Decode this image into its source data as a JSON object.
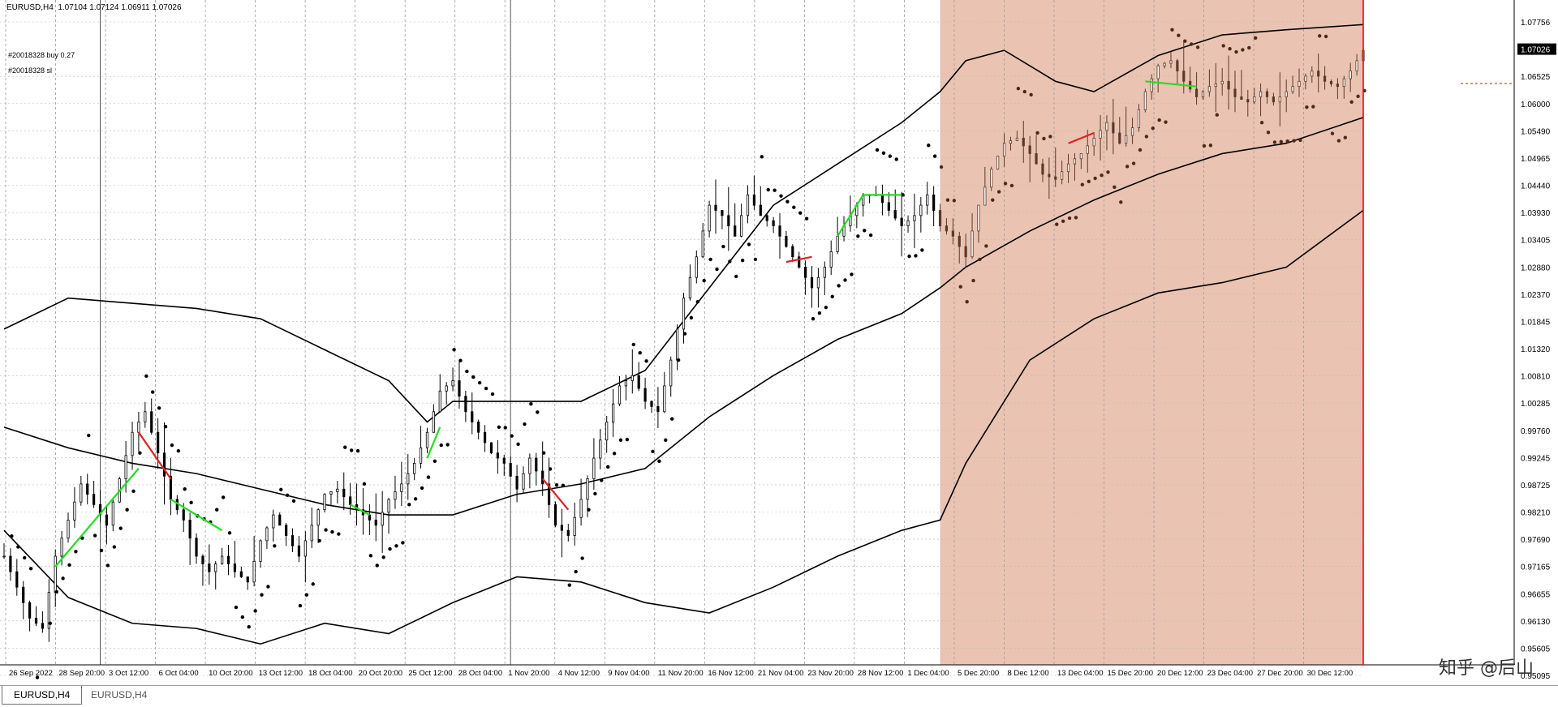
{
  "header": {
    "text": "EURUSD,H4  1.07104 1.07124 1.06911 1.07026"
  },
  "trade_labels": [
    "#20018328 buy 0.27",
    "#20018328 sl"
  ],
  "tabs": [
    {
      "label": "EURUSD,H4",
      "active": true
    },
    {
      "label": "EURUSD,H4",
      "active": false
    }
  ],
  "watermark": "知乎 @后山",
  "colors": {
    "background": "#ffffff",
    "shade": "#e8b9a5",
    "candle": "#000000",
    "band": "#000000",
    "sar": "#000000",
    "zigzag_up": "#22dd22",
    "zigzag_down": "#dd2222",
    "current_line": "#ff0000",
    "price_box": "#000000"
  },
  "chart_data": {
    "type": "line",
    "symbol": "EURUSD",
    "timeframe": "H4",
    "ohlc_last": {
      "open": 1.07104,
      "high": 1.07124,
      "low": 1.06911,
      "close": 1.07026
    },
    "current_price": "1.07026",
    "ylim": [
      1.09295,
      1.07756
    ],
    "y_ticks": [
      "1.07756",
      "1.07026",
      "1.06525",
      "1.06000",
      "1.05490",
      "1.04965",
      "1.04440",
      "1.03930",
      "1.03405",
      "1.02880",
      "1.02370",
      "1.01845",
      "1.01320",
      "1.00810",
      "1.00285",
      "0.99760",
      "0.99245",
      "0.98725",
      "0.98210",
      "0.97690",
      "0.97165",
      "0.96655",
      "0.96130",
      "0.95605",
      "0.95095"
    ],
    "x_ticks": [
      "26 Sep 2022",
      "28 Sep 20:00",
      "3 Oct 12:00",
      "6 Oct 04:00",
      "10 Oct 20:00",
      "13 Oct 12:00",
      "18 Oct 04:00",
      "20 Oct 20:00",
      "25 Oct 12:00",
      "28 Oct 04:00",
      "1 Nov 20:00",
      "4 Nov 12:00",
      "9 Nov 04:00",
      "11 Nov 20:00",
      "16 Nov 12:00",
      "21 Nov 04:00",
      "23 Nov 20:00",
      "28 Nov 12:00",
      "1 Dec 04:00",
      "5 Dec 20:00",
      "8 Dec 12:00",
      "13 Dec 04:00",
      "15 Dec 20:00",
      "20 Dec 12:00",
      "23 Dec 04:00",
      "27 Dec 20:00",
      "30 Dec 12:00"
    ],
    "shaded_from": "1 Dec 04:00",
    "price_path": [
      [
        0,
        0.972
      ],
      [
        2,
        0.966
      ],
      [
        4,
        0.96
      ],
      [
        6,
        0.958
      ],
      [
        8,
        0.972
      ],
      [
        10,
        0.979
      ],
      [
        12,
        0.986
      ],
      [
        14,
        0.982
      ],
      [
        16,
        0.978
      ],
      [
        18,
        0.987
      ],
      [
        20,
        0.996
      ],
      [
        22,
        1.0
      ],
      [
        24,
        0.992
      ],
      [
        26,
        0.983
      ],
      [
        28,
        0.979
      ],
      [
        30,
        0.972
      ],
      [
        32,
        0.969
      ],
      [
        34,
        0.972
      ],
      [
        36,
        0.969
      ],
      [
        38,
        0.967
      ],
      [
        40,
        0.975
      ],
      [
        42,
        0.98
      ],
      [
        44,
        0.976
      ],
      [
        46,
        0.972
      ],
      [
        48,
        0.978
      ],
      [
        50,
        0.984
      ],
      [
        52,
        0.985
      ],
      [
        54,
        0.982
      ],
      [
        56,
        0.98
      ],
      [
        58,
        0.978
      ],
      [
        60,
        0.983
      ],
      [
        62,
        0.986
      ],
      [
        64,
        0.99
      ],
      [
        66,
        0.996
      ],
      [
        68,
        1.004
      ],
      [
        70,
        1.006
      ],
      [
        72,
        1.0
      ],
      [
        74,
        0.996
      ],
      [
        76,
        0.992
      ],
      [
        78,
        0.99
      ],
      [
        80,
        0.985
      ],
      [
        82,
        0.991
      ],
      [
        84,
        0.986
      ],
      [
        86,
        0.978
      ],
      [
        88,
        0.976
      ],
      [
        90,
        0.983
      ],
      [
        92,
        0.991
      ],
      [
        94,
        0.998
      ],
      [
        96,
        1.005
      ],
      [
        98,
        1.007
      ],
      [
        100,
        1.002
      ],
      [
        102,
        1.0
      ],
      [
        104,
        1.01
      ],
      [
        106,
        1.022
      ],
      [
        108,
        1.03
      ],
      [
        110,
        1.04
      ],
      [
        112,
        1.038
      ],
      [
        114,
        1.034
      ],
      [
        116,
        1.042
      ],
      [
        118,
        1.038
      ],
      [
        120,
        1.036
      ],
      [
        122,
        1.032
      ],
      [
        124,
        1.028
      ],
      [
        126,
        1.024
      ],
      [
        128,
        1.028
      ],
      [
        130,
        1.034
      ],
      [
        132,
        1.038
      ],
      [
        134,
        1.042
      ],
      [
        136,
        1.042
      ],
      [
        138,
        1.039
      ],
      [
        140,
        1.036
      ],
      [
        142,
        1.038
      ],
      [
        144,
        1.042
      ],
      [
        146,
        1.036
      ],
      [
        148,
        1.034
      ],
      [
        150,
        1.03
      ],
      [
        152,
        1.04
      ],
      [
        154,
        1.047
      ],
      [
        156,
        1.052
      ],
      [
        158,
        1.053
      ],
      [
        160,
        1.05
      ],
      [
        162,
        1.046
      ],
      [
        164,
        1.045
      ],
      [
        166,
        1.048
      ],
      [
        168,
        1.05
      ],
      [
        170,
        1.053
      ],
      [
        172,
        1.056
      ],
      [
        174,
        1.052
      ],
      [
        176,
        1.055
      ],
      [
        178,
        1.062
      ],
      [
        180,
        1.067
      ],
      [
        182,
        1.068
      ],
      [
        184,
        1.064
      ],
      [
        186,
        1.061
      ],
      [
        188,
        1.063
      ],
      [
        190,
        1.064
      ],
      [
        192,
        1.061
      ],
      [
        194,
        1.06
      ],
      [
        196,
        1.062
      ],
      [
        198,
        1.06
      ],
      [
        200,
        1.062
      ],
      [
        202,
        1.064
      ],
      [
        204,
        1.066
      ],
      [
        206,
        1.064
      ],
      [
        208,
        1.063
      ],
      [
        210,
        1.066
      ],
      [
        212,
        1.07
      ]
    ],
    "bands": {
      "upper": [
        [
          0,
          1.016
        ],
        [
          10,
          1.022
        ],
        [
          20,
          1.021
        ],
        [
          30,
          1.02
        ],
        [
          40,
          1.018
        ],
        [
          50,
          1.012
        ],
        [
          60,
          1.006
        ],
        [
          66,
          0.998
        ],
        [
          70,
          1.002
        ],
        [
          80,
          1.002
        ],
        [
          90,
          1.002
        ],
        [
          100,
          1.008
        ],
        [
          110,
          1.024
        ],
        [
          120,
          1.04
        ],
        [
          130,
          1.048
        ],
        [
          140,
          1.056
        ],
        [
          146,
          1.062
        ],
        [
          150,
          1.068
        ],
        [
          156,
          1.07
        ],
        [
          164,
          1.064
        ],
        [
          170,
          1.062
        ],
        [
          180,
          1.069
        ],
        [
          190,
          1.073
        ],
        [
          200,
          1.074
        ],
        [
          212,
          1.075
        ]
      ],
      "middle": [
        [
          0,
          0.997
        ],
        [
          10,
          0.993
        ],
        [
          20,
          0.99
        ],
        [
          30,
          0.988
        ],
        [
          40,
          0.985
        ],
        [
          50,
          0.982
        ],
        [
          60,
          0.98
        ],
        [
          70,
          0.98
        ],
        [
          80,
          0.984
        ],
        [
          90,
          0.986
        ],
        [
          100,
          0.989
        ],
        [
          110,
          0.999
        ],
        [
          120,
          1.007
        ],
        [
          130,
          1.014
        ],
        [
          140,
          1.019
        ],
        [
          146,
          1.024
        ],
        [
          150,
          1.028
        ],
        [
          160,
          1.035
        ],
        [
          170,
          1.041
        ],
        [
          180,
          1.046
        ],
        [
          190,
          1.05
        ],
        [
          200,
          1.052
        ],
        [
          212,
          1.057
        ]
      ],
      "lower": [
        [
          0,
          0.977
        ],
        [
          10,
          0.964
        ],
        [
          20,
          0.959
        ],
        [
          30,
          0.958
        ],
        [
          40,
          0.955
        ],
        [
          50,
          0.959
        ],
        [
          60,
          0.957
        ],
        [
          70,
          0.963
        ],
        [
          80,
          0.968
        ],
        [
          90,
          0.967
        ],
        [
          100,
          0.963
        ],
        [
          110,
          0.961
        ],
        [
          120,
          0.966
        ],
        [
          130,
          0.972
        ],
        [
          140,
          0.977
        ],
        [
          146,
          0.979
        ],
        [
          150,
          0.99
        ],
        [
          160,
          1.01
        ],
        [
          170,
          1.018
        ],
        [
          180,
          1.023
        ],
        [
          190,
          1.025
        ],
        [
          200,
          1.028
        ],
        [
          212,
          1.039
        ]
      ]
    },
    "zigzag": [
      {
        "from": [
          8,
          0.97
        ],
        "to": [
          21,
          0.989
        ],
        "color": "up"
      },
      {
        "from": [
          21,
          0.996
        ],
        "to": [
          26,
          0.987
        ],
        "color": "down"
      },
      {
        "from": [
          26,
          0.983
        ],
        "to": [
          34,
          0.977
        ],
        "color": "up"
      },
      {
        "from": [
          54,
          0.982
        ],
        "to": [
          57,
          0.98
        ],
        "color": "up"
      },
      {
        "from": [
          66,
          0.991
        ],
        "to": [
          68,
          0.997
        ],
        "color": "up"
      },
      {
        "from": [
          84,
          0.987
        ],
        "to": [
          88,
          0.981
        ],
        "color": "down"
      },
      {
        "from": [
          130,
          1.034
        ],
        "to": [
          134,
          1.042
        ],
        "color": "up"
      },
      {
        "from": [
          134,
          1.042
        ],
        "to": [
          140,
          1.042
        ],
        "color": "up"
      },
      {
        "from": [
          122,
          1.029
        ],
        "to": [
          126,
          1.03
        ],
        "color": "down"
      },
      {
        "from": [
          178,
          1.064
        ],
        "to": [
          186,
          1.063
        ],
        "color": "up"
      },
      {
        "from": [
          166,
          1.052
        ],
        "to": [
          170,
          1.054
        ],
        "color": "down"
      }
    ],
    "grid": true,
    "legend": "none"
  }
}
